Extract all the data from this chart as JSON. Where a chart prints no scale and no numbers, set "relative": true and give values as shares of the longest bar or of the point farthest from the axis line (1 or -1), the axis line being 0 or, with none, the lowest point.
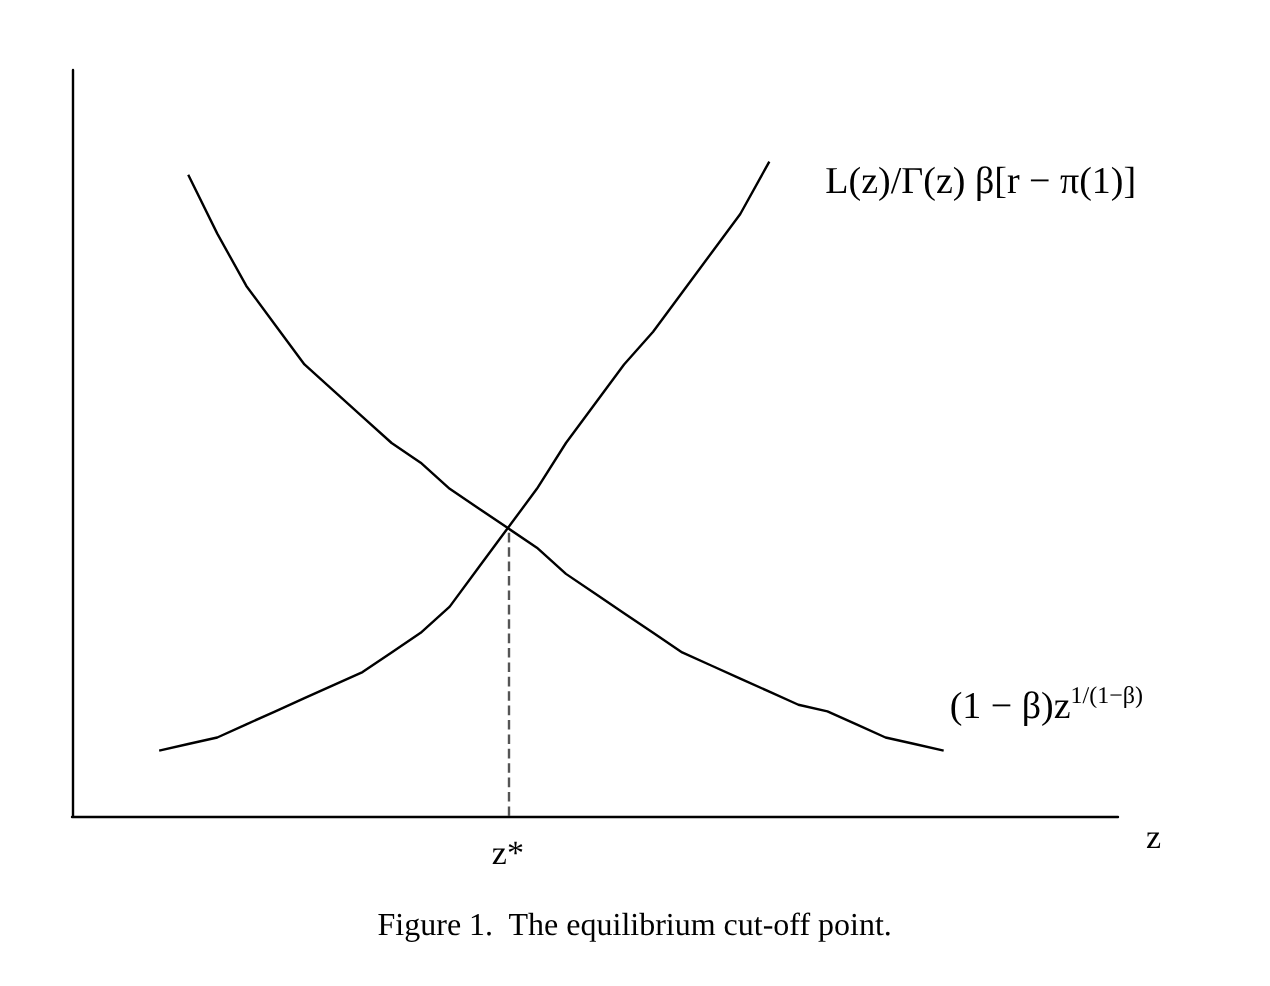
{
  "chart_data": {
    "type": "line",
    "relative": true,
    "xlabel": "z",
    "marker": "none",
    "grid": false,
    "legend": false,
    "categories": [
      null,
      null,
      null,
      null,
      null,
      null,
      null,
      null,
      null,
      null,
      null,
      null,
      null,
      null,
      null,
      null,
      null,
      null,
      null,
      null,
      null,
      null,
      null,
      null,
      null,
      null,
      null,
      null,
      null,
      null,
      null,
      null,
      null,
      null,
      null,
      null,
      null
    ],
    "series": [
      {
        "name": "L(z)/Γ(z) β[r − π(1)]",
        "color": "#000000",
        "values": [
          null,
          null,
          null,
          0.1,
          0.11,
          0.12,
          0.14,
          0.16,
          0.18,
          0.2,
          0.22,
          0.25,
          0.28,
          0.32,
          0.38,
          0.44,
          0.5,
          0.57,
          0.63,
          0.69,
          0.74,
          0.8,
          0.86,
          0.92,
          1,
          null,
          null,
          null,
          null,
          null,
          null,
          null,
          null,
          null,
          null,
          null,
          null
        ]
      },
      {
        "name": "(1 − β)z$^{1/(1−β)}$",
        "color": "#000000",
        "values": [
          null,
          null,
          null,
          null,
          0.98,
          0.89,
          0.81,
          0.75,
          0.69,
          0.65,
          0.61,
          0.57,
          0.54,
          0.5,
          0.47,
          0.44,
          0.41,
          0.37,
          0.34,
          0.31,
          0.28,
          0.25,
          0.23,
          0.21,
          0.19,
          0.17,
          0.16,
          0.14,
          0.12,
          0.11,
          0.1,
          null,
          null,
          null,
          null,
          null,
          null
        ]
      }
    ],
    "ref_lines": [
      {
        "axis": "x",
        "value": "z*",
        "line_style": "dashed",
        "color": "#555555"
      }
    ],
    "annotations": [
      "Figure 1.  The equilibrium cut-off point."
    ]
  }
}
